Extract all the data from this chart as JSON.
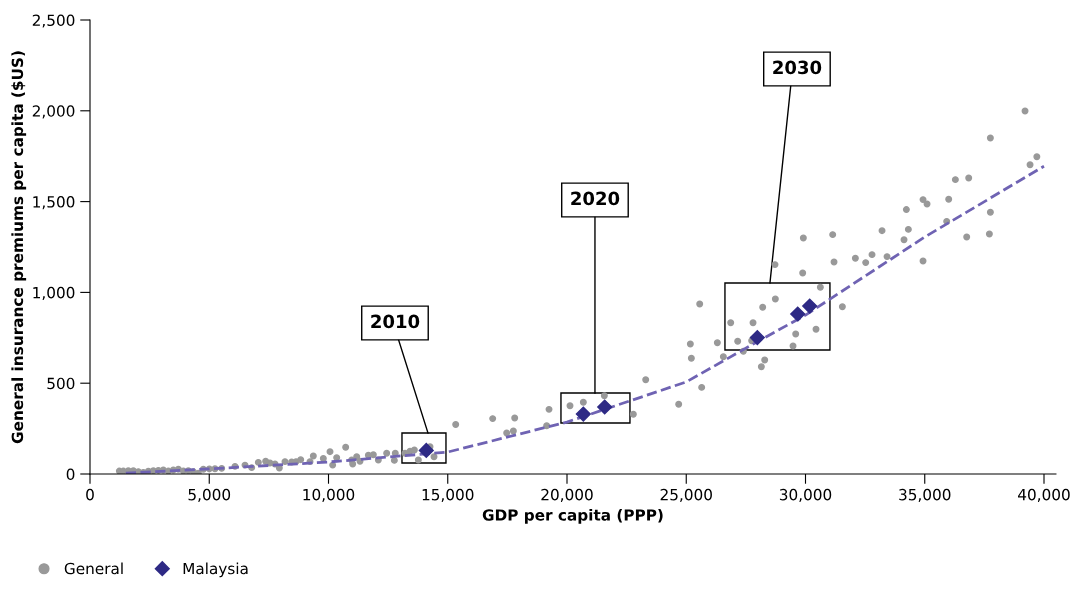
{
  "chart_data": {
    "type": "scatter",
    "xlabel": "GDP per capita (PPP)",
    "ylabel": "General insurance premiums per capita ($US)",
    "xlim": [
      0,
      40500
    ],
    "ylim": [
      0,
      2500
    ],
    "xticks": [
      {
        "value": 0,
        "label": "0"
      },
      {
        "value": 5000,
        "label": "5,000"
      },
      {
        "value": 10000,
        "label": "10,000"
      },
      {
        "value": 15000,
        "label": "15,000"
      },
      {
        "value": 20000,
        "label": "20,000"
      },
      {
        "value": 25000,
        "label": "25,000"
      },
      {
        "value": 30000,
        "label": "30,000"
      },
      {
        "value": 35000,
        "label": "35,000"
      },
      {
        "value": 40000,
        "label": "40,000"
      }
    ],
    "yticks": [
      {
        "value": 0,
        "label": "0"
      },
      {
        "value": 500,
        "label": "500"
      },
      {
        "value": 1000,
        "label": "1,000"
      },
      {
        "value": 1500,
        "label": "1,500"
      },
      {
        "value": 2000,
        "label": "2,000"
      },
      {
        "value": 2500,
        "label": "2,500"
      }
    ],
    "grid": false,
    "legend": "bottom left",
    "series": [
      {
        "name": "General",
        "marker": "circle",
        "color": "#999999",
        "x": [
          1230,
          1398,
          1607,
          1817,
          2027,
          2236,
          2446,
          2656,
          2866,
          3075,
          3285,
          3494,
          3704,
          3914,
          4123,
          4333,
          4542,
          4752,
          5004,
          5241,
          5521,
          6080,
          6499,
          6779,
          7058,
          7366,
          7547,
          7757,
          7939,
          8176,
          8456,
          8638,
          8834,
          9225,
          9364,
          9783,
          10063,
          10175,
          10343,
          10720,
          10972,
          11014,
          11182,
          11321,
          11671,
          11880,
          12090,
          12439,
          12761,
          12800,
          13208,
          13418,
          13600,
          13767,
          14256,
          14424,
          15333,
          16884,
          17807,
          17471,
          17751,
          19246,
          19148,
          20126,
          20685,
          21566,
          22782,
          23300,
          24683,
          25647,
          25172,
          25214,
          25564,
          26304,
          26556,
          26864,
          27157,
          27395,
          27743,
          27800,
          28149,
          28289,
          28205,
          28736,
          28722,
          29477,
          29589,
          29882,
          29910,
          30441,
          30623,
          31140,
          31196,
          31546,
          32091,
          32524,
          32789,
          33209,
          33419,
          34131,
          34313,
          34229,
          34928,
          35096,
          34928,
          35920,
          36004,
          36284,
          36843,
          36759,
          37710,
          37752,
          37752,
          39205,
          39415,
          39700
        ],
        "values": [
          16,
          16,
          18,
          18,
          13,
          9,
          15,
          18,
          20,
          22,
          16,
          22,
          26,
          16,
          18,
          13,
          4,
          26,
          28,
          29,
          31,
          42,
          49,
          35,
          64,
          70,
          61,
          55,
          33,
          68,
          66,
          68,
          79,
          68,
          99,
          85,
          123,
          49,
          90,
          147,
          77,
          55,
          95,
          70,
          103,
          106,
          77,
          114,
          75,
          114,
          114,
          125,
          132,
          77,
          150,
          95,
          273,
          305,
          308,
          226,
          237,
          356,
          266,
          376,
          395,
          431,
          329,
          519,
          384,
          477,
          716,
          637,
          936,
          723,
          646,
          833,
          731,
          676,
          734,
          833,
          591,
          628,
          918,
          964,
          1153,
          705,
          771,
          1107,
          1300,
          797,
          1028,
          1318,
          1167,
          921,
          1188,
          1164,
          1208,
          1340,
          1197,
          1290,
          1347,
          1456,
          1511,
          1487,
          1173,
          1391,
          1513,
          1621,
          1630,
          1305,
          1322,
          1441,
          1850,
          1999,
          1703,
          1747
        ]
      },
      {
        "name": "Malaysia",
        "marker": "diamond",
        "color": "#2e2a85",
        "x": [
          14100,
          20685,
          21580,
          27981,
          29673,
          30176
        ],
        "values": [
          130,
          330,
          369,
          751,
          881,
          925
        ]
      },
      {
        "type": "line",
        "line_style": "dashed",
        "marker": "none",
        "color": "#6f63b3",
        "x": [
          1500,
          5000,
          10000,
          15000,
          20000,
          25000,
          28000,
          30000,
          35000,
          40000
        ],
        "values": [
          5,
          28,
          66,
          121,
          286,
          507,
          730,
          875,
          1305,
          1695
        ]
      }
    ],
    "annotations": [
      "2010",
      "2020",
      "2030"
    ]
  }
}
